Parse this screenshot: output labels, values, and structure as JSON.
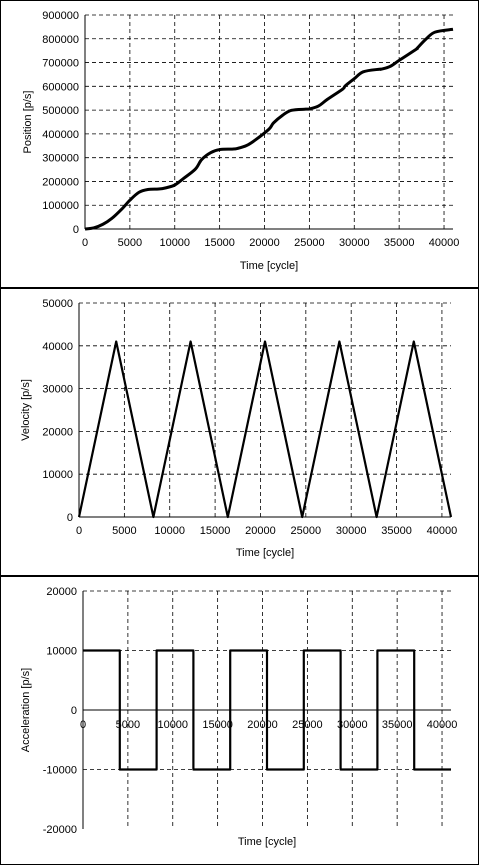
{
  "chart_data": [
    {
      "type": "line",
      "title": "",
      "xlabel": "Time [cycle]",
      "ylabel": "Position [p/s]",
      "xlim": [
        0,
        41000
      ],
      "ylim": [
        0,
        900000
      ],
      "xticks": [
        0,
        5000,
        10000,
        15000,
        20000,
        25000,
        30000,
        35000,
        40000
      ],
      "yticks": [
        0,
        100000,
        200000,
        300000,
        400000,
        500000,
        600000,
        700000,
        800000,
        900000
      ],
      "grid": true,
      "series": [
        {
          "x": [
            0,
            1000,
            2000,
            3000,
            4100,
            5000,
            6000,
            7000,
            8200,
            9000,
            10000,
            11000,
            12300,
            13000,
            14000,
            15000,
            16400,
            17000,
            18000,
            19000,
            20500,
            21000,
            22000,
            23000,
            24600,
            25000,
            26000,
            27000,
            28700,
            29000,
            30000,
            31000,
            32800,
            33000,
            34000,
            35000,
            36900,
            37000,
            38000,
            39000,
            41000
          ],
          "values": [
            0,
            5000,
            20000,
            45000,
            84000,
            121000,
            154000,
            166000,
            168000,
            173000,
            185000,
            213000,
            252000,
            292000,
            321000,
            334000,
            336000,
            339000,
            351000,
            375000,
            420000,
            446000,
            478000,
            499000,
            504000,
            505000,
            517000,
            545000,
            588000,
            602000,
            632000,
            661000,
            672000,
            672000,
            684000,
            709000,
            756000,
            760000,
            799000,
            828000,
            840000
          ]
        }
      ]
    },
    {
      "type": "line",
      "title": "",
      "xlabel": "Time [cycle]",
      "ylabel": "Velocity [p/s]",
      "xlim": [
        0,
        41000
      ],
      "ylim": [
        0,
        50000
      ],
      "xticks": [
        0,
        5000,
        10000,
        15000,
        20000,
        25000,
        30000,
        35000,
        40000
      ],
      "yticks": [
        0,
        10000,
        20000,
        30000,
        40000,
        50000
      ],
      "grid": true,
      "series": [
        {
          "x": [
            0,
            4100,
            8200,
            12300,
            16400,
            20500,
            24600,
            28700,
            32800,
            36900,
            41000
          ],
          "values": [
            0,
            41000,
            0,
            41000,
            0,
            41000,
            0,
            41000,
            0,
            41000,
            0
          ]
        }
      ]
    },
    {
      "type": "line",
      "title": "",
      "xlabel": "Time [cycle]",
      "ylabel": "Acceleration [p/s]",
      "xlim": [
        0,
        41000
      ],
      "ylim": [
        -20000,
        20000
      ],
      "xticks": [
        0,
        5000,
        10000,
        15000,
        20000,
        25000,
        30000,
        35000,
        40000
      ],
      "yticks": [
        -20000,
        -10000,
        0,
        10000,
        20000
      ],
      "grid": true,
      "series": [
        {
          "x": [
            0,
            4100,
            4100,
            8200,
            8200,
            12300,
            12300,
            16400,
            16400,
            20500,
            20500,
            24600,
            24600,
            28700,
            28700,
            32800,
            32800,
            36900,
            36900,
            41000
          ],
          "values": [
            10000,
            10000,
            -10000,
            -10000,
            10000,
            10000,
            -10000,
            -10000,
            10000,
            10000,
            -10000,
            -10000,
            10000,
            10000,
            -10000,
            -10000,
            10000,
            10000,
            -10000,
            -10000
          ]
        }
      ]
    }
  ]
}
